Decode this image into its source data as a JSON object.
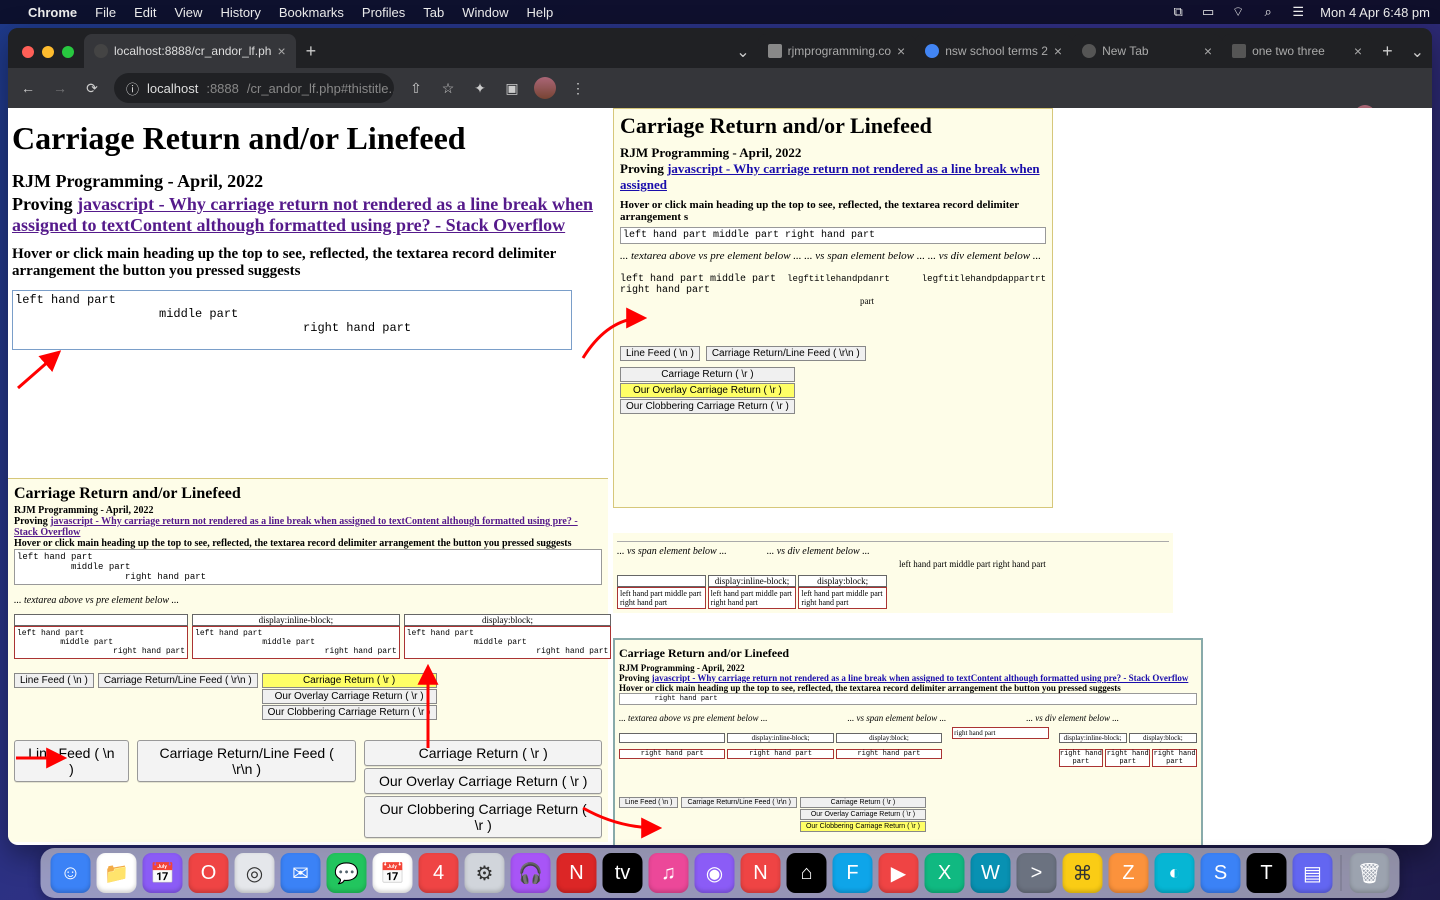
{
  "menubar": {
    "app": "Chrome",
    "items": [
      "File",
      "Edit",
      "View",
      "History",
      "Bookmarks",
      "Profiles",
      "Tab",
      "Window",
      "Help"
    ],
    "clock": "Mon 4 Apr  6:48 pm"
  },
  "tabs": {
    "active": "localhost:8888/cr_andor_lf.ph",
    "others": [
      "rjmprogramming.co",
      "nsw school terms 2",
      "New Tab",
      "one two three"
    ]
  },
  "address": {
    "host": "localhost",
    "port": ":8888",
    "path": "/cr_andor_lf.php#thistitle..."
  },
  "page": {
    "h1": "Carriage Return and/or Linefeed",
    "h3": "RJM Programming - April, 2022",
    "proving_prefix": "Proving ",
    "proving_link": "javascript - Why carriage return not rendered as a line break when assigned to textContent although formatted using pre? - Stack Overflow",
    "hover": "Hover or click main heading up the top to see, reflected, the textarea record delimiter arrangement the button you pressed suggests",
    "textarea": "left hand part\n                    middle part\n                                        right hand part"
  },
  "right": {
    "h2": "Carriage Return and/or Linefeed",
    "sub": "RJM Programming - April, 2022",
    "proving_prefix": "Proving ",
    "proving_link": "javascript - Why carriage return not rendered as a line break when assigned",
    "hover": "Hover or click main heading up the top to see, reflected, the textarea record delimiter arrangement s",
    "ta": "left hand part    middle part    right hand part",
    "note": "... textarea above vs pre element below ...    ... vs span element below ...    ... vs div element below ...",
    "prerow": "left hand part    middle part    right hand part",
    "over1": "legftitlehandpdanrt",
    "over2": "legftitlehandpdappartrt",
    "over3": "part",
    "btns": {
      "lf": "Line Feed  ( \\n )",
      "crlf": "Carriage Return/Line Feed  ( \\r\\n )",
      "cr": "Carriage Return  ( \\r )",
      "overlay": "Our Overlay Carriage Return  ( \\r )",
      "clobber": "Our Clobbering Carriage Return  ( \\r )"
    }
  },
  "yellow": {
    "h2": "Carriage Return and/or Linefeed",
    "sub": "RJM Programming - April, 2022",
    "proving_prefix": "Proving ",
    "proving_link": "javascript - Why carriage return not rendered as a line break when assigned to textContent although formatted using pre? - Stack Overflow",
    "hover": "Hover or click main heading up the top to see, reflected, the textarea record delimiter arrangement the button you pressed suggests",
    "pre": "left hand part\n          middle part\n                    right hand part",
    "note": "... textarea above vs pre element below ...",
    "col_inline": "display:inline-block;",
    "col_block": "display:block;",
    "cell1": "left hand part\n         middle part\n                    right hand part",
    "cell2": "left hand part\n              middle part\n                           right hand part",
    "cell3": "left hand part\n              middle part\n                           right hand part",
    "smallbtns": {
      "lf": "Line Feed  ( \\n )",
      "crlf": "Carriage Return/Line Feed  ( \\r\\n )",
      "cr": "Carriage Return  ( \\r )",
      "overlay": "Our Overlay Carriage Return  ( \\r )",
      "clobber": "Our Clobbering Carriage Return  ( \\r )"
    }
  },
  "bigbtns": {
    "lf": "Line Feed  ( \\n )",
    "crlf": "Carriage Return/Line Feed  ( \\r\\n )",
    "cr": "Carriage Return  ( \\r )",
    "overlay": "Our Overlay Carriage Return  ( \\r )",
    "clobber": "Our Clobbering Carriage Return  ( \\r )"
  },
  "midright": {
    "span_note": "... vs span element below ...",
    "div_note": "... vs div element below ...",
    "concat": "left hand part middle part right hand part",
    "hdr_inline": "display:inline-block;",
    "hdr_block": "display:block;",
    "body": "left hand part middle part right hand part"
  },
  "mini": {
    "h3": "Carriage Return and/or Linefeed",
    "sub": "RJM Programming - April, 2022",
    "proving_prefix": "Proving ",
    "proving_link": "javascript - Why carriage return not rendered as a line break when assigned to textContent although formatted using pre? - Stack Overflow",
    "hover": "Hover or click main heading up the top to see, reflected, the textarea record delimiter arrangement the button you pressed suggests",
    "pre": "        right hand part",
    "note_ta": "... textarea above vs pre element below ...",
    "note_span": "... vs span element below ...",
    "note_div": "... vs div element below ...",
    "hdr_inline": "display:inline-block;",
    "hdr_block": "display:block;",
    "cell": "              right hand part",
    "rhp": "right hand part",
    "btns": {
      "lf": "Line Feed  ( \\n )",
      "crlf": "Carriage Return/Line Feed  ( \\r\\n )",
      "cr": "Carriage Return  ( \\r )",
      "overlay": "Our Overlay Carriage Return  ( \\r )",
      "clobber": "Our Clobbering Carriage Return  ( \\r )"
    }
  },
  "colors": {
    "yellow_bg": "#fefde8",
    "highlight": "#ffff66",
    "arrow": "#ff0000",
    "link_visited": "#551a8b",
    "link_blue": "#1a0dab"
  },
  "dock_icons": [
    {
      "bg": "#3b82f6",
      "g": "☺"
    },
    {
      "bg": "#ffffff",
      "g": "📁"
    },
    {
      "bg": "#8b5cf6",
      "g": "📅"
    },
    {
      "bg": "#ef4444",
      "g": "O"
    },
    {
      "bg": "#e5e7eb",
      "g": "◎"
    },
    {
      "bg": "#3b82f6",
      "g": "✉"
    },
    {
      "bg": "#22c55e",
      "g": "💬"
    },
    {
      "bg": "#ffffff",
      "g": "📅"
    },
    {
      "bg": "#ef4444",
      "g": "4"
    },
    {
      "bg": "#d1d5db",
      "g": "⚙"
    },
    {
      "bg": "#a855f7",
      "g": "🎧"
    },
    {
      "bg": "#dc2626",
      "g": "N"
    },
    {
      "bg": "#000000",
      "g": "tv"
    },
    {
      "bg": "#ec4899",
      "g": "♫"
    },
    {
      "bg": "#8b5cf6",
      "g": "◉"
    },
    {
      "bg": "#ef4444",
      "g": "N"
    },
    {
      "bg": "#000000",
      "g": "⌂"
    },
    {
      "bg": "#0ea5e9",
      "g": "F"
    },
    {
      "bg": "#ef4444",
      "g": "▶"
    },
    {
      "bg": "#10b981",
      "g": "X"
    },
    {
      "bg": "#0891b2",
      "g": "W"
    },
    {
      "bg": "#6b7280",
      "g": ">"
    },
    {
      "bg": "#facc15",
      "g": "⌘"
    },
    {
      "bg": "#fb923c",
      "g": "Z"
    },
    {
      "bg": "#06b6d4",
      "g": "◐"
    },
    {
      "bg": "#3b82f6",
      "g": "S"
    },
    {
      "bg": "#000000",
      "g": "T"
    },
    {
      "bg": "#6366f1",
      "g": "▤"
    },
    {
      "bg": "#9ca3af",
      "g": "🗑"
    }
  ]
}
